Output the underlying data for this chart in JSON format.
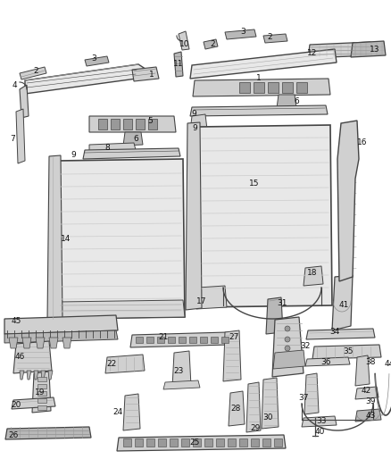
{
  "bg": "#ffffff",
  "lc": "#444444",
  "fc_light": "#e8e8e8",
  "fc_mid": "#d0d0d0",
  "fc_dark": "#b8b8b8",
  "fc_stripe": "#c0c0c0",
  "label_fs": 6.5,
  "label_color": "#111111"
}
